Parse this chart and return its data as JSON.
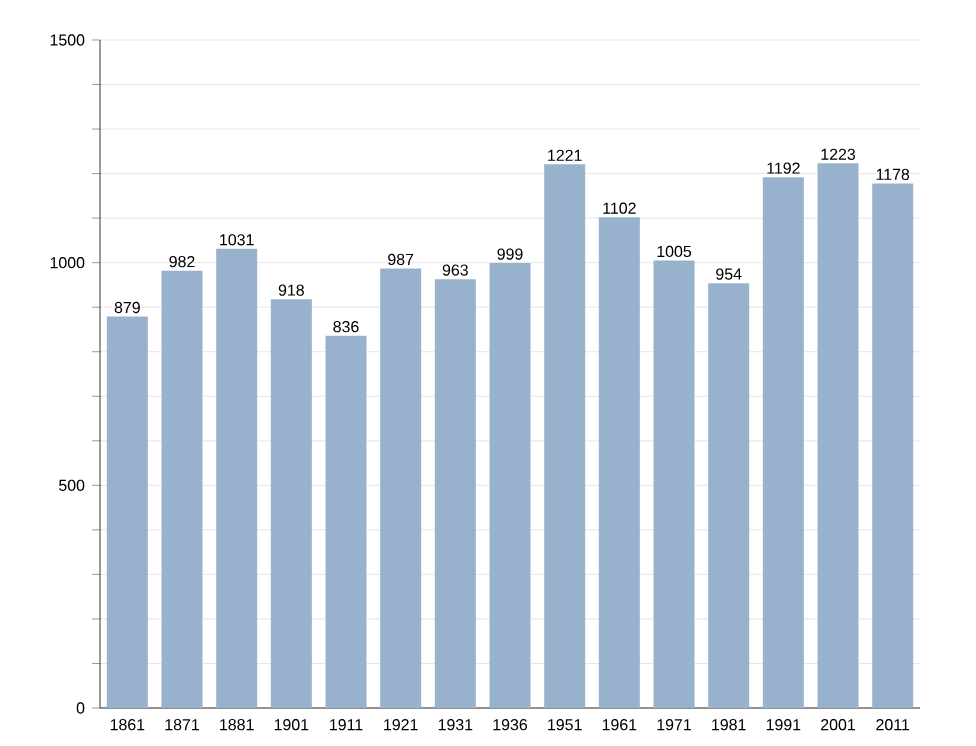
{
  "chart_data": {
    "type": "bar",
    "categories": [
      "1861",
      "1871",
      "1881",
      "1901",
      "1911",
      "1921",
      "1931",
      "1936",
      "1951",
      "1961",
      "1971",
      "1981",
      "1991",
      "2001",
      "2011"
    ],
    "values": [
      879,
      982,
      1031,
      918,
      836,
      987,
      963,
      999,
      1221,
      1102,
      1005,
      954,
      1192,
      1223,
      1178
    ],
    "color": "#98b2cd",
    "ylim": [
      0,
      1500
    ],
    "yticks": [
      0,
      {
        "value": 100,
        "label": null
      },
      {
        "value": 200,
        "label": null
      },
      {
        "value": 300,
        "label": null
      },
      {
        "value": 400,
        "label": null
      },
      500,
      {
        "value": 600,
        "label": null
      },
      {
        "value": 700,
        "label": null
      },
      {
        "value": 800,
        "label": null
      },
      {
        "value": 900,
        "label": null
      },
      1000,
      {
        "value": 1100,
        "label": null
      },
      {
        "value": 1200,
        "label": null
      },
      {
        "value": 1300,
        "label": null
      },
      {
        "value": 1400,
        "label": null
      },
      1500
    ],
    "grid": true,
    "data_labels": true
  }
}
